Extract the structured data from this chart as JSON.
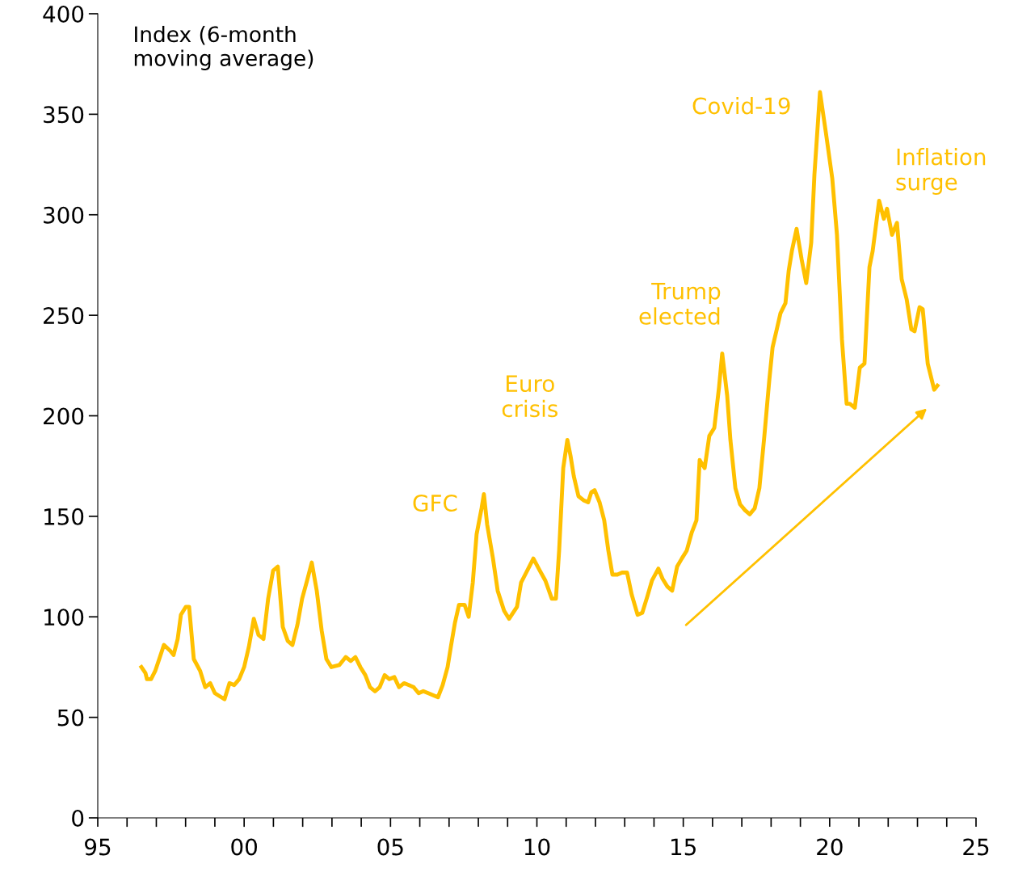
{
  "chart_data": {
    "type": "line",
    "x": [
      1996.49,
      1996.63,
      1996.68,
      1996.82,
      1996.96,
      1997.1,
      1997.26,
      1997.48,
      1997.59,
      1997.73,
      1997.84,
      1998.01,
      1998.12,
      1998.28,
      1998.5,
      1998.67,
      1998.84,
      1999.0,
      1999.33,
      1999.5,
      1999.66,
      1999.83,
      2000.0,
      2000.16,
      2000.33,
      2000.49,
      2000.66,
      2000.82,
      2000.99,
      2001.15,
      2001.32,
      2001.49,
      2001.65,
      2001.82,
      2001.98,
      2002.15,
      2002.31,
      2002.48,
      2002.65,
      2002.81,
      2002.98,
      2003.25,
      2003.47,
      2003.64,
      2003.8,
      2003.97,
      2004.14,
      2004.3,
      2004.47,
      2004.63,
      2004.8,
      2004.96,
      2005.13,
      2005.29,
      2005.46,
      2005.63,
      2005.79,
      2005.96,
      2006.12,
      2006.29,
      2006.62,
      2006.78,
      2006.95,
      2007.06,
      2007.2,
      2007.34,
      2007.53,
      2007.67,
      2007.81,
      2007.94,
      2008.11,
      2008.19,
      2008.3,
      2008.5,
      2008.66,
      2008.88,
      2009.05,
      2009.32,
      2009.46,
      2009.6,
      2009.74,
      2009.88,
      2010.1,
      2010.29,
      2010.51,
      2010.65,
      2010.76,
      2010.9,
      2011.04,
      2011.15,
      2011.26,
      2011.42,
      2011.59,
      2011.75,
      2011.86,
      2011.97,
      2012.14,
      2012.3,
      2012.44,
      2012.58,
      2012.75,
      2012.91,
      2013.08,
      2013.24,
      2013.44,
      2013.6,
      2013.77,
      2013.93,
      2014.15,
      2014.29,
      2014.46,
      2014.62,
      2014.79,
      2014.95,
      2015.12,
      2015.29,
      2015.45,
      2015.56,
      2015.73,
      2015.89,
      2016.06,
      2016.22,
      2016.33,
      2016.5,
      2016.61,
      2016.78,
      2016.94,
      2017.11,
      2017.27,
      2017.44,
      2017.6,
      2017.77,
      2017.94,
      2018.05,
      2018.21,
      2018.32,
      2018.49,
      2018.6,
      2018.71,
      2018.87,
      2019.04,
      2019.2,
      2019.37,
      2019.48,
      2019.67,
      2019.87,
      2020.09,
      2020.25,
      2020.42,
      2020.58,
      2020.69,
      2020.86,
      2021.03,
      2021.19,
      2021.36,
      2021.47,
      2021.69,
      2021.85,
      2021.96,
      2022.13,
      2022.3,
      2022.46,
      2022.63,
      2022.79,
      2022.9,
      2023.07,
      2023.18,
      2023.35,
      2023.57,
      2023.68
    ],
    "series": [
      {
        "color": "#ffc000",
        "values": [
          75,
          72,
          69,
          69,
          73,
          79,
          86,
          83,
          81,
          89,
          101,
          105,
          105,
          79,
          73,
          65,
          67,
          62,
          59,
          67,
          66,
          69,
          75,
          85,
          99,
          91,
          89,
          109,
          123,
          125,
          95,
          88,
          86,
          96,
          109,
          118,
          127,
          113,
          93,
          79,
          75,
          76,
          80,
          78,
          80,
          75,
          71,
          65,
          63,
          65,
          71,
          69,
          70,
          65,
          67,
          66,
          65,
          62,
          63,
          62,
          60,
          66,
          75,
          85,
          97,
          106,
          106,
          100,
          117,
          141,
          154,
          161,
          146,
          129,
          113,
          103,
          99,
          105,
          117,
          121,
          125,
          129,
          123,
          118,
          109,
          109,
          133,
          174,
          188,
          180,
          170,
          160,
          158,
          157,
          162,
          163,
          157,
          148,
          133,
          121,
          121,
          122,
          122,
          111,
          101,
          102,
          110,
          118,
          124,
          119,
          115,
          113,
          125,
          129,
          133,
          142,
          148,
          178,
          174,
          190,
          194,
          214,
          231,
          210,
          188,
          164,
          156,
          153,
          151,
          154,
          164,
          190,
          218,
          234,
          244,
          251,
          256,
          272,
          282,
          293,
          278,
          266,
          286,
          320,
          361,
          341,
          318,
          290,
          238,
          206,
          206,
          204,
          224,
          226,
          274,
          282,
          307,
          298,
          303,
          290,
          296,
          268,
          258,
          243,
          242,
          254,
          253,
          226,
          213,
          215
        ]
      }
    ],
    "xlim": [
      1995,
      2025
    ],
    "xticks": [
      {
        "value": 1995,
        "label": "95"
      },
      {
        "value": 1996,
        "label": null
      },
      {
        "value": 1997,
        "label": null
      },
      {
        "value": 1998,
        "label": null
      },
      {
        "value": 1999,
        "label": null
      },
      {
        "value": 2000,
        "label": "00"
      },
      {
        "value": 2001,
        "label": null
      },
      {
        "value": 2002,
        "label": null
      },
      {
        "value": 2003,
        "label": null
      },
      {
        "value": 2004,
        "label": null
      },
      {
        "value": 2005,
        "label": "05"
      },
      {
        "value": 2006,
        "label": null
      },
      {
        "value": 2007,
        "label": null
      },
      {
        "value": 2008,
        "label": null
      },
      {
        "value": 2009,
        "label": null
      },
      {
        "value": 2010,
        "label": "10"
      },
      {
        "value": 2011,
        "label": null
      },
      {
        "value": 2012,
        "label": null
      },
      {
        "value": 2013,
        "label": null
      },
      {
        "value": 2014,
        "label": null
      },
      {
        "value": 2015,
        "label": "15"
      },
      {
        "value": 2016,
        "label": null
      },
      {
        "value": 2017,
        "label": null
      },
      {
        "value": 2018,
        "label": null
      },
      {
        "value": 2019,
        "label": null
      },
      {
        "value": 2020,
        "label": "20"
      },
      {
        "value": 2021,
        "label": null
      },
      {
        "value": 2022,
        "label": null
      },
      {
        "value": 2023,
        "label": null
      },
      {
        "value": 2024,
        "label": null
      },
      {
        "value": 2025,
        "label": "25"
      }
    ],
    "ylim": [
      0,
      400
    ],
    "yticks": [
      0,
      50,
      100,
      150,
      200,
      250,
      300,
      350,
      400
    ],
    "grid": false,
    "legend": false,
    "marker": "none",
    "line_style": "solid",
    "annotations": [
      "Index (6-month\nmoving average)",
      "GFC",
      "Euro\ncrisis",
      "Trump\nelected",
      "Covid-19",
      "Inflation\nsurge"
    ]
  }
}
